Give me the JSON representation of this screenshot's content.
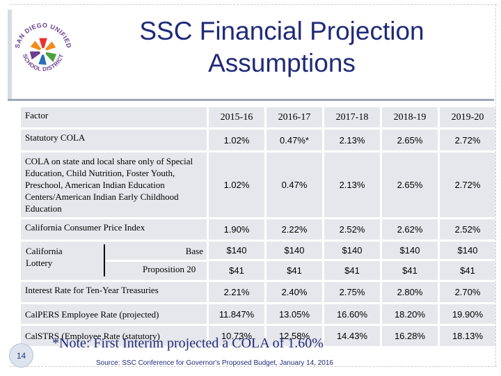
{
  "slide": {
    "title_line1": "SSC Financial Projection",
    "title_line2": "Assumptions",
    "logo_text": "SAN DIEGO UNIFIED SCHOOL DISTRICT",
    "page_number": "14",
    "note": "*Note: First Interim projected a COLA of 1.60%",
    "source": "Source: SSC Conference for Governor's Proposed Budget, January 14, 2016"
  },
  "table": {
    "header": {
      "factor": "Factor",
      "years": [
        "2015-16",
        "2016-17",
        "2017-18",
        "2018-19",
        "2019-20"
      ]
    },
    "rows": [
      {
        "label": "Statutory COLA",
        "values": [
          "1.02%",
          "0.47%*",
          "2.13%",
          "2.65%",
          "2.72%"
        ]
      },
      {
        "label": "COLA on state and local share only of Special Education, Child Nutrition, Foster Youth, Preschool, American Indian Education Centers/American Indian Early Childhood Education",
        "values": [
          "1.02%",
          "0.47%",
          "2.13%",
          "2.65%",
          "2.72%"
        ]
      },
      {
        "label": "California Consumer Price Index",
        "values": [
          "1.90%",
          "2.22%",
          "2.52%",
          "2.62%",
          "2.52%"
        ]
      },
      {
        "label": "Base",
        "values": [
          "$140",
          "$140",
          "$140",
          "$140",
          "$140"
        ]
      },
      {
        "label": "Proposition 20",
        "values": [
          "$41",
          "$41",
          "$41",
          "$41",
          "$41"
        ]
      },
      {
        "label": "Interest Rate for Ten-Year Treasuries",
        "values": [
          "2.21%",
          "2.40%",
          "2.75%",
          "2.80%",
          "2.70%"
        ]
      },
      {
        "label": "CalPERS Employee Rate (projected)",
        "values": [
          "11.847%",
          "13.05%",
          "16.60%",
          "18.20%",
          "19.90%"
        ]
      },
      {
        "label": "CalSTRS (Employee Rate (statutory)",
        "values": [
          "10.73%",
          "12.58%",
          "14.43%",
          "16.28%",
          "18.13%"
        ]
      }
    ],
    "lottery_group_label": "California Lottery"
  },
  "colors": {
    "title": "#1f2a78",
    "cell_bg": "#e6e7ec",
    "header_rule": "#9ca7b8",
    "logo_red": "#e8322e",
    "logo_orange": "#f08a1c",
    "logo_green": "#4aa23c",
    "logo_blue": "#2a6fb8",
    "logo_purple": "#6a3e91"
  }
}
